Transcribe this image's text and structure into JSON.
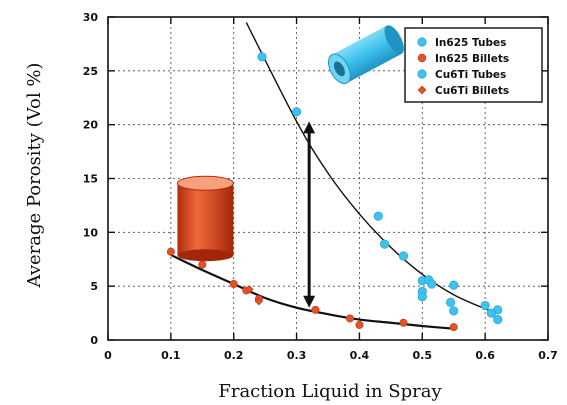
{
  "chart_data": {
    "type": "scatter",
    "xlabel": "Fraction Liquid in Spray",
    "ylabel": "Average Porosity (Vol %)",
    "xlim": [
      0,
      0.7
    ],
    "ylim": [
      0,
      30
    ],
    "xticks": [
      "0",
      "0.1",
      "0.2",
      "0.3",
      "0.4",
      "0.5",
      "0.6",
      "0.7"
    ],
    "yticks": [
      "0",
      "5",
      "10",
      "15",
      "20",
      "25",
      "30"
    ],
    "grid": true,
    "legend_position": "top-right",
    "series": [
      {
        "name": "In625 Tubes",
        "marker": "circle",
        "color": "#3fc3ee",
        "points": [
          [
            0.245,
            26.3
          ],
          [
            0.3,
            21.2
          ],
          [
            0.43,
            11.5
          ],
          [
            0.44,
            8.9
          ],
          [
            0.47,
            7.8
          ],
          [
            0.5,
            5.5
          ],
          [
            0.51,
            5.6
          ],
          [
            0.515,
            5.2
          ],
          [
            0.55,
            5.1
          ],
          [
            0.6,
            3.2
          ],
          [
            0.62,
            2.8
          ],
          [
            0.62,
            1.9
          ]
        ]
      },
      {
        "name": "In625 Billets",
        "marker": "circle",
        "color": "#e8502a",
        "points": [
          [
            0.1,
            8.2
          ],
          [
            0.15,
            7.0
          ],
          [
            0.2,
            5.2
          ],
          [
            0.22,
            4.6
          ],
          [
            0.24,
            3.8
          ],
          [
            0.33,
            2.8
          ],
          [
            0.385,
            2.0
          ],
          [
            0.4,
            1.4
          ],
          [
            0.47,
            1.6
          ],
          [
            0.55,
            1.2
          ]
        ]
      },
      {
        "name": "Cu6Ti Tubes",
        "marker": "circle",
        "color": "#3fc3ee",
        "points": [
          [
            0.5,
            4.5
          ],
          [
            0.5,
            4.0
          ],
          [
            0.545,
            3.5
          ],
          [
            0.55,
            2.7
          ],
          [
            0.61,
            2.5
          ]
        ]
      },
      {
        "name": "Cu6Ti Billets",
        "marker": "diamond",
        "color": "#e8502a",
        "points": [
          [
            0.225,
            4.7
          ],
          [
            0.24,
            3.6
          ]
        ]
      }
    ],
    "fit_curves": [
      {
        "for": "tubes",
        "points": [
          [
            0.22,
            29.5
          ],
          [
            0.3,
            20.3
          ],
          [
            0.35,
            15.5
          ],
          [
            0.4,
            11.7
          ],
          [
            0.45,
            8.6
          ],
          [
            0.5,
            6.1
          ],
          [
            0.55,
            4.2
          ],
          [
            0.6,
            2.9
          ],
          [
            0.62,
            2.5
          ]
        ]
      },
      {
        "for": "billets",
        "points": [
          [
            0.1,
            7.9
          ],
          [
            0.15,
            6.5
          ],
          [
            0.2,
            5.2
          ],
          [
            0.25,
            3.9
          ],
          [
            0.3,
            3.0
          ],
          [
            0.35,
            2.4
          ],
          [
            0.4,
            1.9
          ],
          [
            0.45,
            1.6
          ],
          [
            0.5,
            1.3
          ],
          [
            0.55,
            1.05
          ]
        ]
      }
    ],
    "annotations": [
      {
        "type": "double-arrow",
        "x": 0.32,
        "y_from": 20.3,
        "y_to": 3.0
      },
      {
        "type": "tube-icon",
        "color": "#3fc3ee",
        "x": 0.4,
        "y": 25
      },
      {
        "type": "billet-icon",
        "color": "#d83a14",
        "x": 0.155,
        "y": 14
      }
    ]
  }
}
